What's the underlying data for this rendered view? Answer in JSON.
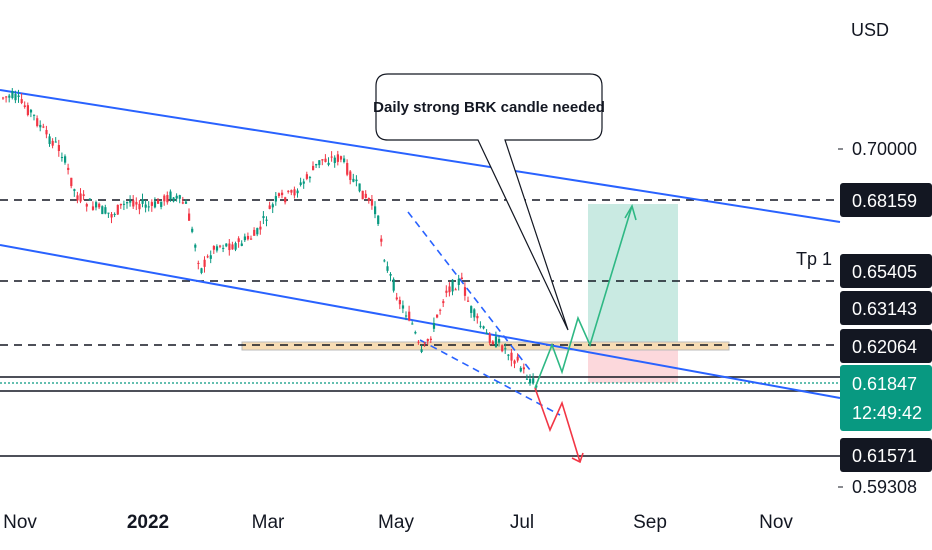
{
  "chart_data": {
    "type": "candlestick",
    "currency_label": "USD",
    "x_ticks": [
      {
        "label": "Nov",
        "bold": false
      },
      {
        "label": "2022",
        "bold": true
      },
      {
        "label": "Mar",
        "bold": false
      },
      {
        "label": "May",
        "bold": false
      },
      {
        "label": "Jul",
        "bold": false
      },
      {
        "label": "Sep",
        "bold": false
      },
      {
        "label": "Nov",
        "bold": false
      }
    ],
    "y_ticks": [
      {
        "value": 0.7,
        "label": "0.70000"
      },
      {
        "value": 0.59308,
        "label": "0.59308"
      }
    ],
    "price_levels": [
      {
        "value": 0.68159,
        "label": "0.68159",
        "style": "dashed",
        "tag": "black"
      },
      {
        "value": 0.65405,
        "label": "0.65405",
        "style": "dashed",
        "tag": "black"
      },
      {
        "value": 0.63143,
        "label": "0.63143",
        "style": "none",
        "tag": "black"
      },
      {
        "value": 0.62064,
        "label": "0.62064",
        "style": "dashed",
        "tag": "black"
      },
      {
        "value": 0.61571,
        "label": "0.61571",
        "style": "solid",
        "tag": "black"
      }
    ],
    "current_price": {
      "label": "0.61847",
      "countdown": "12:49:42",
      "color": "#089981"
    },
    "tp_label": "Tp 1",
    "callout_text": "Daily strong BRK candle needed",
    "colors": {
      "up": "#089981",
      "down": "#f23645",
      "channel": "#2962ff",
      "target_zone": "#bfe6dd",
      "stop_zone": "#fbd1d6",
      "support_band": "#f7dcb4"
    }
  }
}
